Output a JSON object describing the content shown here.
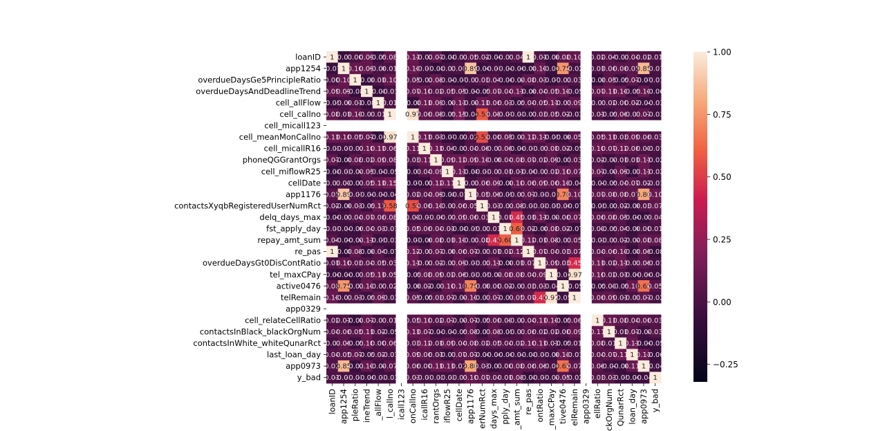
{
  "chart_data": {
    "type": "heatmap",
    "variables": [
      "loanID",
      "app1254",
      "overdueDaysGe5PrincipleRatio",
      "overdueDaysAndDeadlineTrend",
      "cell_allFlow",
      "cell_callno",
      "cell_micall123",
      "cell_meanMonCallno",
      "cell_micallR16",
      "phoneQGGrantOrgs",
      "cell_miflowR25",
      "cellDate",
      "app1176",
      "contactsXyqbRegisteredUserNumRct",
      "delq_days_max",
      "fst_apply_day",
      "repay_amt_sum",
      "re_pas",
      "overdueDaysGt0DisContRatio",
      "tel_maxCPay",
      "active0476",
      "telRemain",
      "app0329",
      "cell_relateCellRatio",
      "contactsInBlack_blackOrgNum",
      "contactsInWhite_whiteQunarRct",
      "last_loan_day",
      "app0973",
      "y_bad"
    ],
    "x_tick_labels": [
      "loanID",
      "app1254",
      "pleRatio",
      "ineTrend",
      "_allFlow",
      "l_callno",
      "icall123",
      "onCallno",
      "icallR16",
      "rantOrgs",
      "iflowR25",
      "cellDate",
      "app1176",
      "erNumRct",
      "days_max",
      "pply_day",
      "_amt_sum",
      "re_pas",
      "ontRatio",
      "_maxCPay",
      "tive0476",
      "elRemain",
      "app0329",
      "ellRatio",
      "ckOrgNum",
      "QunarRct",
      "loan_day",
      "app0973",
      "y_bad"
    ],
    "empty_variables": [
      "cell_micall123",
      "app0329"
    ],
    "strong_pairs": [
      {
        "a": "loanID",
        "b": "re_pas",
        "r": 1.0
      },
      {
        "a": "cell_callno",
        "b": "cell_meanMonCallno",
        "r": 0.97
      },
      {
        "a": "tel_maxCPay",
        "b": "telRemain",
        "r": 0.97
      },
      {
        "a": "app1254",
        "b": "app1176",
        "r": 0.89
      },
      {
        "a": "app1254",
        "b": "app0973",
        "r": 0.85
      },
      {
        "a": "app1176",
        "b": "app0973",
        "r": 0.8
      },
      {
        "a": "app1254",
        "b": "active0476",
        "r": 0.75
      },
      {
        "a": "app1176",
        "b": "active0476",
        "r": 0.7
      },
      {
        "a": "active0476",
        "b": "app0973",
        "r": 0.65
      },
      {
        "a": "cell_callno",
        "b": "contactsXyqbRegisteredUserNumRct",
        "r": 0.58
      },
      {
        "a": "fst_apply_day",
        "b": "repay_amt_sum",
        "r": 0.6
      },
      {
        "a": "delq_days_max",
        "b": "repay_amt_sum",
        "r": 0.45
      },
      {
        "a": "overdueDaysGt0DisContRatio",
        "b": "telRemain",
        "r": 0.45
      },
      {
        "a": "cellDate",
        "b": "cell_callno",
        "r": 0.15
      },
      {
        "a": "cell_meanMonCallno",
        "b": "contactsXyqbRegisteredUserNumRct",
        "r": 0.55
      }
    ],
    "value_range": [
      -0.32,
      1.0
    ],
    "colorbar": {
      "ticks": [
        1.0,
        0.75,
        0.5,
        0.25,
        0.0,
        -0.25
      ],
      "tick_labels": [
        "1.00",
        "0.75",
        "0.50",
        "0.25",
        "0.00",
        "−0.25"
      ]
    },
    "annotate": true,
    "colormap": "rocket",
    "grid": false
  }
}
